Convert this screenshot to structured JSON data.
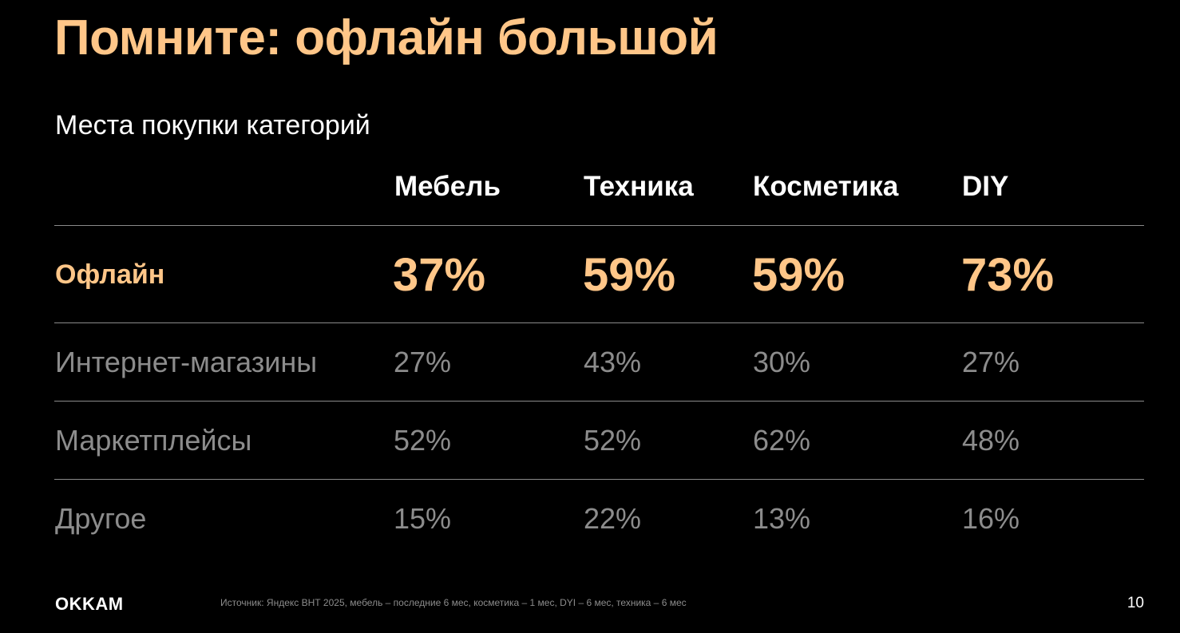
{
  "slide": {
    "title": "Помните: офлайн большой",
    "subtitle": "Места покупки категорий"
  },
  "table": {
    "columns": [
      "Мебель",
      "Техника",
      "Косметика",
      "DIY"
    ],
    "rows": [
      {
        "label": "Офлайн",
        "values": [
          "37%",
          "59%",
          "59%",
          "73%"
        ],
        "highlight": true
      },
      {
        "label": "Интернет-магазины",
        "values": [
          "27%",
          "43%",
          "30%",
          "27%"
        ],
        "highlight": false
      },
      {
        "label": "Маркетплейсы",
        "values": [
          "52%",
          "52%",
          "62%",
          "48%"
        ],
        "highlight": false
      },
      {
        "label": "Другое",
        "values": [
          "15%",
          "22%",
          "13%",
          "16%"
        ],
        "highlight": false
      }
    ]
  },
  "footer": {
    "logo": "OKKAM",
    "source": "Источник: Яндекс ВНТ 2025, мебель – последние 6 мес, косметика – 1 мес, DYI – 6 мес, техника – 6 мес",
    "page_number": "10"
  },
  "colors": {
    "background": "#000000",
    "accent": "#ffc688",
    "muted_text": "#8c8c8c",
    "divider": "#8a8a8a"
  }
}
